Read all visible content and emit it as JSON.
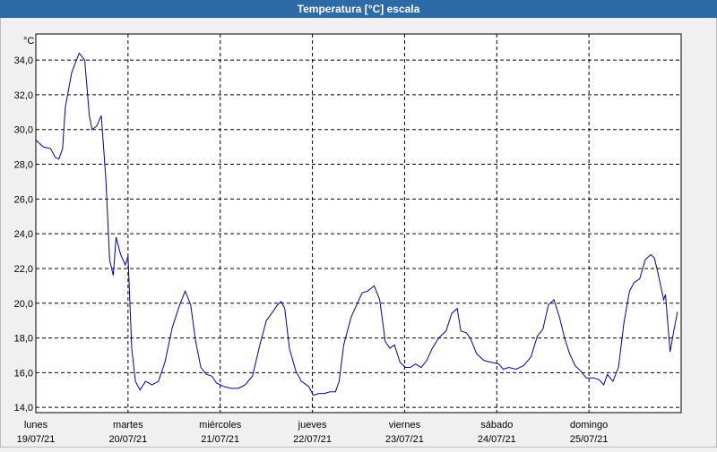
{
  "chart_data": {
    "type": "line",
    "title": "Temperatura [°C] escala",
    "y_label": "°C",
    "color": "#0000a0",
    "grid": true,
    "xlim": [
      0,
      7
    ],
    "xticks": [
      {
        "value": 0,
        "label": [
          "lunes",
          "19/07/21"
        ]
      },
      {
        "value": 1,
        "label": [
          "martes",
          "20/07/21"
        ]
      },
      {
        "value": 2,
        "label": [
          "miércoles",
          "21/07/21"
        ]
      },
      {
        "value": 3,
        "label": [
          "jueves",
          "22/07/21"
        ]
      },
      {
        "value": 4,
        "label": [
          "viernes",
          "23/07/21"
        ]
      },
      {
        "value": 5,
        "label": [
          "sábado",
          "24/07/21"
        ]
      },
      {
        "value": 6,
        "label": [
          "domingo",
          "25/07/21"
        ]
      }
    ],
    "ylim": [
      13.7,
      35.5
    ],
    "yticks": [
      {
        "value": 14,
        "label": "14,0"
      },
      {
        "value": 16,
        "label": "16,0"
      },
      {
        "value": 18,
        "label": "18,0"
      },
      {
        "value": 20,
        "label": "20,0"
      },
      {
        "value": 22,
        "label": "22,0"
      },
      {
        "value": 24,
        "label": "24,0"
      },
      {
        "value": 26,
        "label": "26,0"
      },
      {
        "value": 28,
        "label": "28,0"
      },
      {
        "value": 30,
        "label": "30,0"
      },
      {
        "value": 32,
        "label": "32,0"
      },
      {
        "value": 34,
        "label": "34,0"
      }
    ],
    "x": [
      0,
      0.08,
      0.16,
      0.21,
      0.25,
      0.29,
      0.32,
      0.39,
      0.47,
      0.53,
      0.58,
      0.61,
      0.66,
      0.71,
      0.76,
      0.8,
      0.84,
      0.87,
      0.92,
      0.97,
      1.0,
      1.04,
      1.08,
      1.13,
      1.19,
      1.26,
      1.33,
      1.4,
      1.48,
      1.56,
      1.62,
      1.68,
      1.73,
      1.79,
      1.85,
      1.91,
      1.96,
      2.04,
      2.12,
      2.2,
      2.27,
      2.35,
      2.43,
      2.5,
      2.57,
      2.62,
      2.66,
      2.7,
      2.75,
      2.82,
      2.88,
      2.96,
      3.01,
      3.07,
      3.13,
      3.19,
      3.25,
      3.29,
      3.34,
      3.42,
      3.48,
      3.54,
      3.6,
      3.67,
      3.73,
      3.79,
      3.84,
      3.89,
      3.95,
      4.01,
      4.06,
      4.12,
      4.18,
      4.24,
      4.3,
      4.37,
      4.45,
      4.51,
      4.57,
      4.61,
      4.67,
      4.72,
      4.78,
      4.86,
      4.94,
      5.02,
      5.07,
      5.13,
      5.21,
      5.29,
      5.37,
      5.44,
      5.5,
      5.56,
      5.62,
      5.68,
      5.74,
      5.79,
      5.85,
      5.91,
      5.97,
      6.05,
      6.11,
      6.16,
      6.2,
      6.26,
      6.32,
      6.38,
      6.44,
      6.49,
      6.55,
      6.61,
      6.67,
      6.71,
      6.75,
      6.81,
      6.83,
      6.88,
      6.92,
      6.96
    ],
    "values": [
      29.4,
      29.0,
      28.9,
      28.4,
      28.3,
      28.9,
      31.3,
      33.3,
      34.4,
      34.0,
      30.8,
      30.0,
      30.2,
      30.8,
      27.1,
      22.5,
      21.6,
      23.8,
      22.8,
      22.2,
      22.7,
      17.4,
      15.5,
      15.0,
      15.5,
      15.3,
      15.5,
      16.6,
      18.6,
      19.9,
      20.7,
      19.9,
      17.9,
      16.3,
      15.9,
      15.8,
      15.4,
      15.2,
      15.1,
      15.1,
      15.3,
      15.8,
      17.6,
      19.0,
      19.5,
      19.9,
      20.1,
      19.7,
      17.4,
      16.1,
      15.5,
      15.2,
      14.7,
      14.8,
      14.8,
      14.9,
      14.9,
      15.5,
      17.6,
      19.2,
      19.9,
      20.6,
      20.7,
      21.0,
      20.2,
      17.8,
      17.4,
      17.6,
      16.6,
      16.3,
      16.3,
      16.5,
      16.3,
      16.7,
      17.4,
      18.0,
      18.4,
      19.4,
      19.7,
      18.4,
      18.3,
      17.9,
      17.1,
      16.7,
      16.6,
      16.5,
      16.2,
      16.3,
      16.2,
      16.4,
      16.9,
      18.1,
      18.5,
      19.9,
      20.2,
      19.2,
      17.9,
      17.1,
      16.4,
      16.1,
      15.7,
      15.7,
      15.6,
      15.3,
      15.9,
      15.5,
      16.3,
      18.9,
      20.7,
      21.2,
      21.4,
      22.5,
      22.8,
      22.6,
      21.7,
      20.2,
      20.5,
      17.2,
      18.4,
      19.5
    ]
  }
}
